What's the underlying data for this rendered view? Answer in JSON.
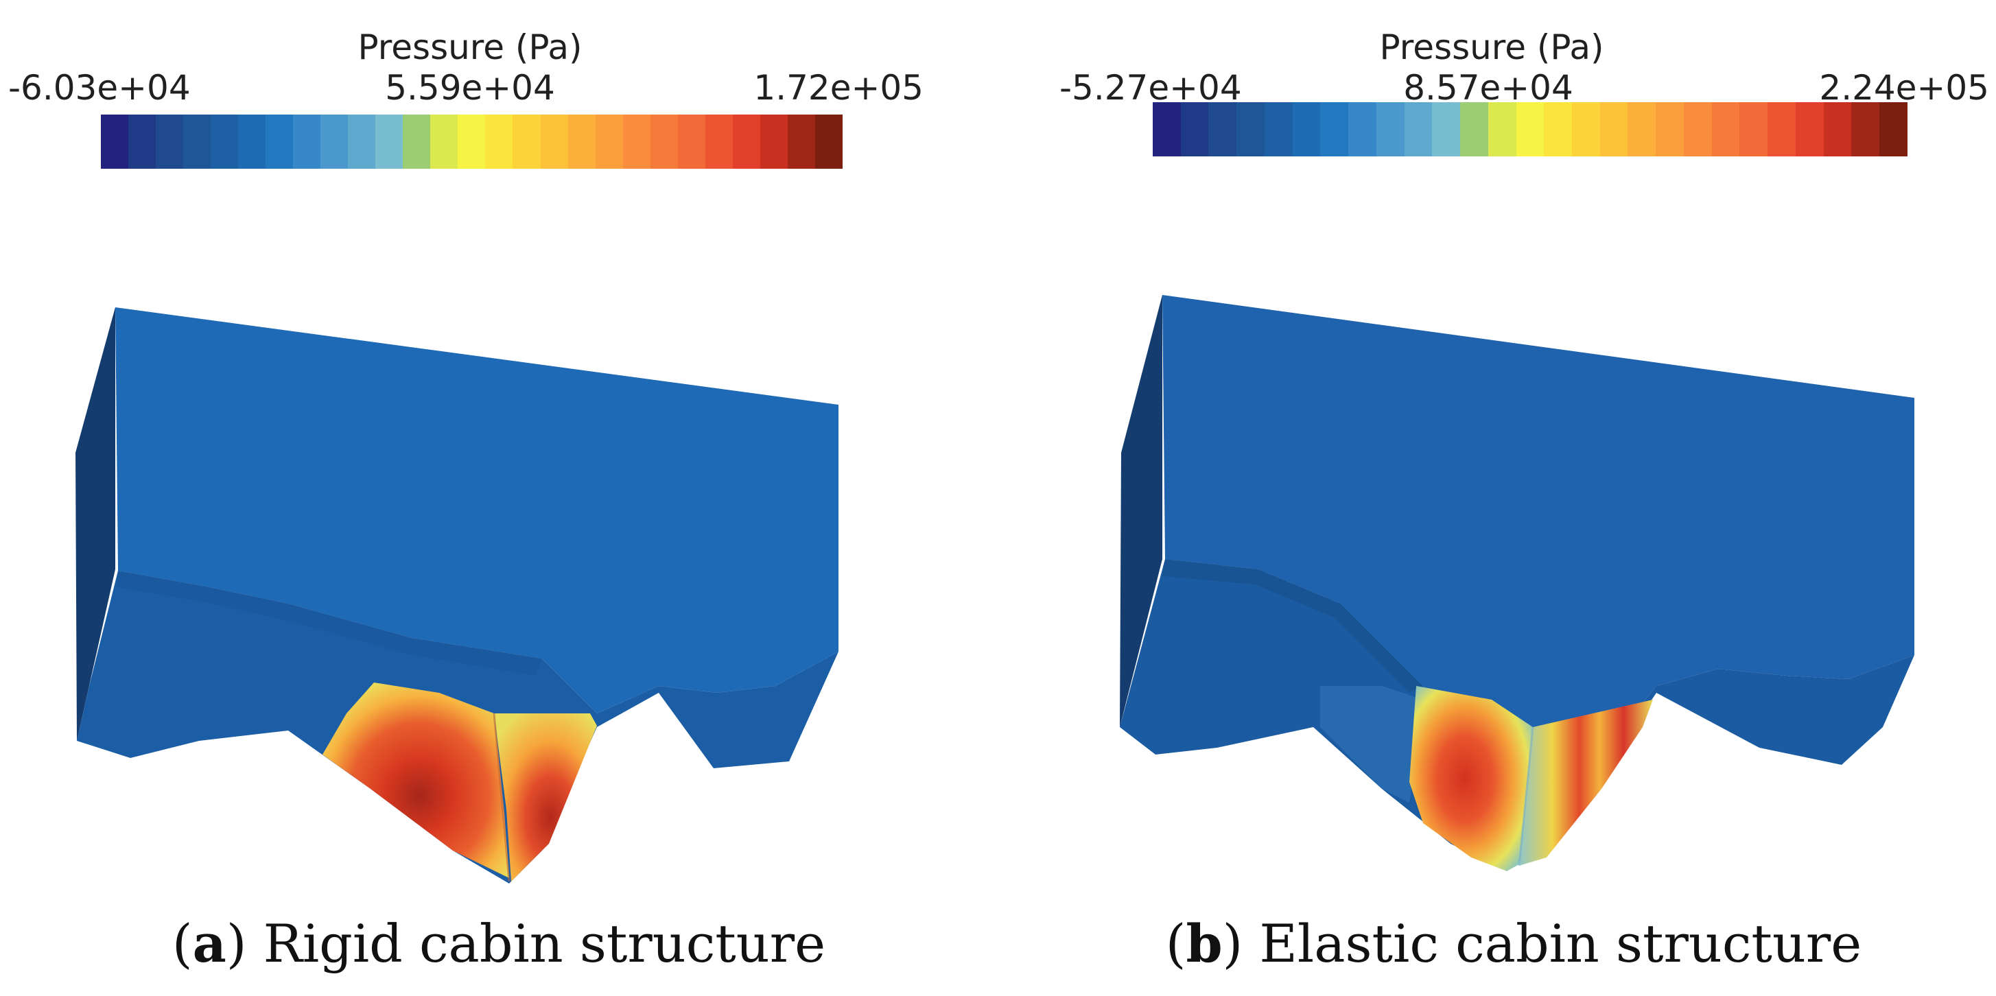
{
  "figure": {
    "panels": [
      {
        "id": "a",
        "caption_letter": "a",
        "caption_text": "Rigid cabin structure",
        "colorbar": {
          "title": "Pressure (Pa)",
          "min_label": "-6.03e+04",
          "mid_label": "5.59e+04",
          "max_label": "1.72e+05"
        }
      },
      {
        "id": "b",
        "caption_letter": "b",
        "caption_text": "Elastic cabin structure",
        "colorbar": {
          "title": "Pressure (Pa)",
          "min_label": "-5.27e+04",
          "mid_label": "8.57e+04",
          "max_label": "2.24e+05"
        }
      }
    ],
    "colormap": [
      "#23227e",
      "#1f3a86",
      "#1f4a90",
      "#1e5698",
      "#1d60a4",
      "#1e6cb4",
      "#2379c0",
      "#3688c8",
      "#4a98cc",
      "#5fa9cf",
      "#79bdd0",
      "#9ccd72",
      "#dbe84e",
      "#f6f345",
      "#fbe53c",
      "#fcd43a",
      "#fdc13a",
      "#fcb03b",
      "#fb9f3c",
      "#f98d3d",
      "#f67b3b",
      "#f26a38",
      "#ec5432",
      "#e2402b",
      "#c8301f",
      "#a02617",
      "#7c1e10"
    ],
    "surface_colors": {
      "hull_top": "#1f68b4",
      "hull_side": "#143e72",
      "hull_lower": "#1b5da4",
      "peak": "#c22a1c",
      "high": "#e34c2a",
      "mid": "#f5a23a",
      "low": "#f3e24a"
    }
  }
}
